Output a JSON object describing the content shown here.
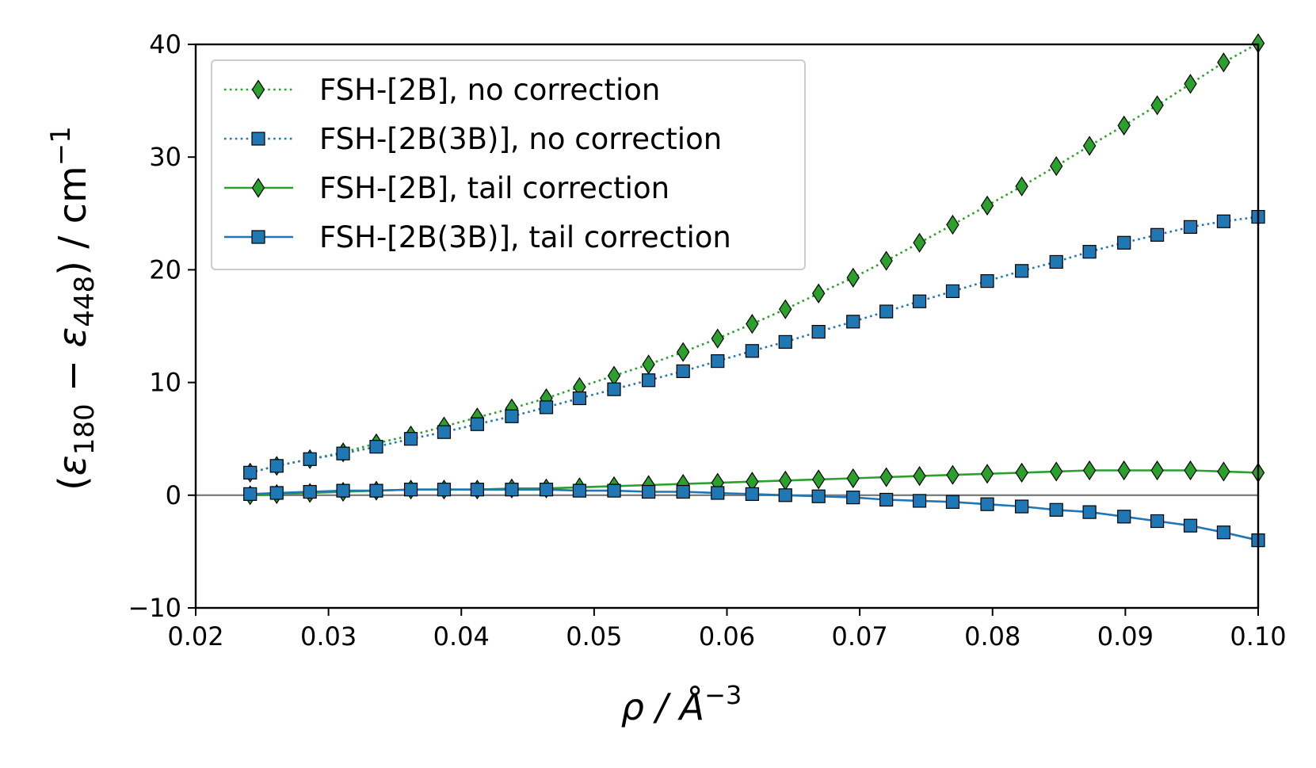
{
  "chart_data": {
    "type": "line",
    "title": "",
    "xlabel": {
      "base": "ρ / Å",
      "sup": "−3"
    },
    "ylabel": {
      "open": "(",
      "eps1": "ε",
      "sub1": "180",
      "minus": " − ",
      "eps2": "ε",
      "sub2": "448",
      "close": ") / cm",
      "sup": "−1"
    },
    "xlim": [
      0.02,
      0.1
    ],
    "ylim": [
      -10,
      40
    ],
    "xticks": [
      0.02,
      0.03,
      0.04,
      0.05,
      0.06,
      0.07,
      0.08,
      0.09,
      0.1
    ],
    "xtick_labels": [
      "0.02",
      "0.03",
      "0.04",
      "0.05",
      "0.06",
      "0.07",
      "0.08",
      "0.09",
      "0.10"
    ],
    "yticks": [
      -10,
      0,
      10,
      20,
      30,
      40
    ],
    "ytick_labels": [
      "−10",
      "0",
      "10",
      "20",
      "30",
      "40"
    ],
    "zero_line": true,
    "legend_position": "upper-left",
    "x": [
      0.0241,
      0.0261,
      0.0286,
      0.0311,
      0.0336,
      0.0362,
      0.0387,
      0.0412,
      0.0438,
      0.0464,
      0.0489,
      0.0515,
      0.0541,
      0.0567,
      0.0593,
      0.0619,
      0.0644,
      0.0669,
      0.0695,
      0.072,
      0.0745,
      0.077,
      0.0796,
      0.0822,
      0.0848,
      0.0873,
      0.0899,
      0.0924,
      0.0949,
      0.0974,
      0.1
    ],
    "series": [
      {
        "name": "FSH-[2B], no correction",
        "color": "#2ca02c",
        "linestyle": "dotted",
        "marker": "diamond",
        "values": [
          2.0,
          2.6,
          3.2,
          3.8,
          4.6,
          5.3,
          6.1,
          6.9,
          7.7,
          8.6,
          9.6,
          10.6,
          11.6,
          12.7,
          13.9,
          15.2,
          16.5,
          17.9,
          19.3,
          20.8,
          22.4,
          24.0,
          25.7,
          27.4,
          29.2,
          31.0,
          32.8,
          34.6,
          36.5,
          38.4,
          40.1
        ]
      },
      {
        "name": "FSH-[2B(3B)], no correction",
        "color": "#1f77b4",
        "linestyle": "dotted",
        "marker": "square",
        "values": [
          2.0,
          2.6,
          3.2,
          3.7,
          4.3,
          5.0,
          5.6,
          6.3,
          7.0,
          7.8,
          8.6,
          9.4,
          10.2,
          11.0,
          11.9,
          12.8,
          13.6,
          14.5,
          15.4,
          16.3,
          17.2,
          18.1,
          19.0,
          19.9,
          20.7,
          21.6,
          22.4,
          23.1,
          23.8,
          24.3,
          24.7
        ]
      },
      {
        "name": "FSH-[2B], tail correction",
        "color": "#2ca02c",
        "linestyle": "solid",
        "marker": "diamond",
        "values": [
          0.0,
          0.1,
          0.2,
          0.3,
          0.4,
          0.5,
          0.5,
          0.5,
          0.6,
          0.6,
          0.7,
          0.8,
          0.9,
          1.0,
          1.1,
          1.2,
          1.3,
          1.4,
          1.5,
          1.6,
          1.7,
          1.8,
          1.9,
          2.0,
          2.1,
          2.2,
          2.2,
          2.2,
          2.2,
          2.1,
          2.0
        ]
      },
      {
        "name": "FSH-[2B(3B)], tail correction",
        "color": "#1f77b4",
        "linestyle": "solid",
        "marker": "square",
        "values": [
          0.1,
          0.2,
          0.3,
          0.4,
          0.4,
          0.5,
          0.5,
          0.5,
          0.5,
          0.5,
          0.4,
          0.4,
          0.3,
          0.3,
          0.2,
          0.1,
          0.0,
          -0.1,
          -0.2,
          -0.4,
          -0.5,
          -0.6,
          -0.8,
          -1.0,
          -1.3,
          -1.5,
          -1.9,
          -2.3,
          -2.7,
          -3.3,
          -4.0
        ]
      }
    ]
  }
}
